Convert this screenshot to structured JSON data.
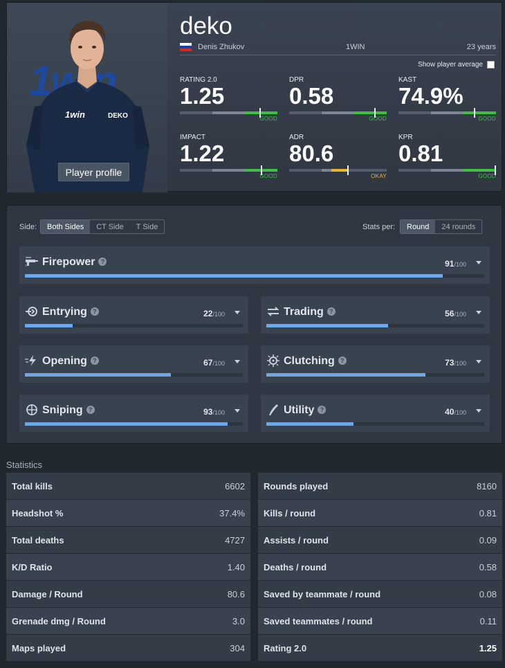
{
  "player": {
    "nickname": "deko",
    "real_name": "Denis Zhukov",
    "team": "1WIN",
    "age": "23 years",
    "photo_logo_text": "1win",
    "shirt_logo": "1win",
    "shirt_name": "DEKO",
    "profile_button": "Player profile",
    "show_average_label": "Show player average"
  },
  "summary": [
    {
      "label": "RATING 2.0",
      "value": "1.25",
      "rating": "GOOD",
      "level": 0.82
    },
    {
      "label": "DPR",
      "value": "0.58",
      "rating": "GOOD",
      "level": 0.88
    },
    {
      "label": "KAST",
      "value": "74.9%",
      "rating": "GOOD",
      "level": 0.78
    },
    {
      "label": "IMPACT",
      "value": "1.22",
      "rating": "GOOD",
      "level": 0.84
    },
    {
      "label": "ADR",
      "value": "80.6",
      "rating": "OKAY",
      "level": 0.6
    },
    {
      "label": "KPR",
      "value": "0.81",
      "rating": "GOOD",
      "level": 0.99
    }
  ],
  "colors": {
    "good": "#3cc23c",
    "okay": "#f0b428",
    "role_fill": "#6fa8e6"
  },
  "filters": {
    "side_label": "Side:",
    "sides": [
      "Both Sides",
      "CT Side",
      "T Side"
    ],
    "stats_per_label": "Stats per:",
    "per_options": [
      "Round",
      "24 rounds"
    ]
  },
  "roles": [
    {
      "name": "Firepower",
      "score": "91",
      "max": "/100",
      "icon": "firepower-icon",
      "value": 91
    },
    {
      "name": "Entrying",
      "score": "22",
      "max": "/100",
      "icon": "entrying-icon",
      "value": 22
    },
    {
      "name": "Trading",
      "score": "56",
      "max": "/100",
      "icon": "trading-icon",
      "value": 56
    },
    {
      "name": "Opening",
      "score": "67",
      "max": "/100",
      "icon": "opening-icon",
      "value": 67
    },
    {
      "name": "Clutching",
      "score": "73",
      "max": "/100",
      "icon": "clutching-icon",
      "value": 73
    },
    {
      "name": "Sniping",
      "score": "93",
      "max": "/100",
      "icon": "sniping-icon",
      "value": 93
    },
    {
      "name": "Utility",
      "score": "40",
      "max": "/100",
      "icon": "utility-icon",
      "value": 40
    }
  ],
  "statistics": {
    "title": "Statistics",
    "left": [
      {
        "label": "Total kills",
        "value": "6602"
      },
      {
        "label": "Headshot %",
        "value": "37.4%"
      },
      {
        "label": "Total deaths",
        "value": "4727"
      },
      {
        "label": "K/D Ratio",
        "value": "1.40"
      },
      {
        "label": "Damage / Round",
        "value": "80.6"
      },
      {
        "label": "Grenade dmg / Round",
        "value": "3.0"
      },
      {
        "label": "Maps played",
        "value": "304"
      }
    ],
    "right": [
      {
        "label": "Rounds played",
        "value": "8160"
      },
      {
        "label": "Kills / round",
        "value": "0.81"
      },
      {
        "label": "Assists / round",
        "value": "0.09"
      },
      {
        "label": "Deaths / round",
        "value": "0.58"
      },
      {
        "label": "Saved by teammate / round",
        "value": "0.08"
      },
      {
        "label": "Saved teammates / round",
        "value": "0.11"
      },
      {
        "label": "Rating 2.0",
        "value": "1.25"
      }
    ]
  }
}
